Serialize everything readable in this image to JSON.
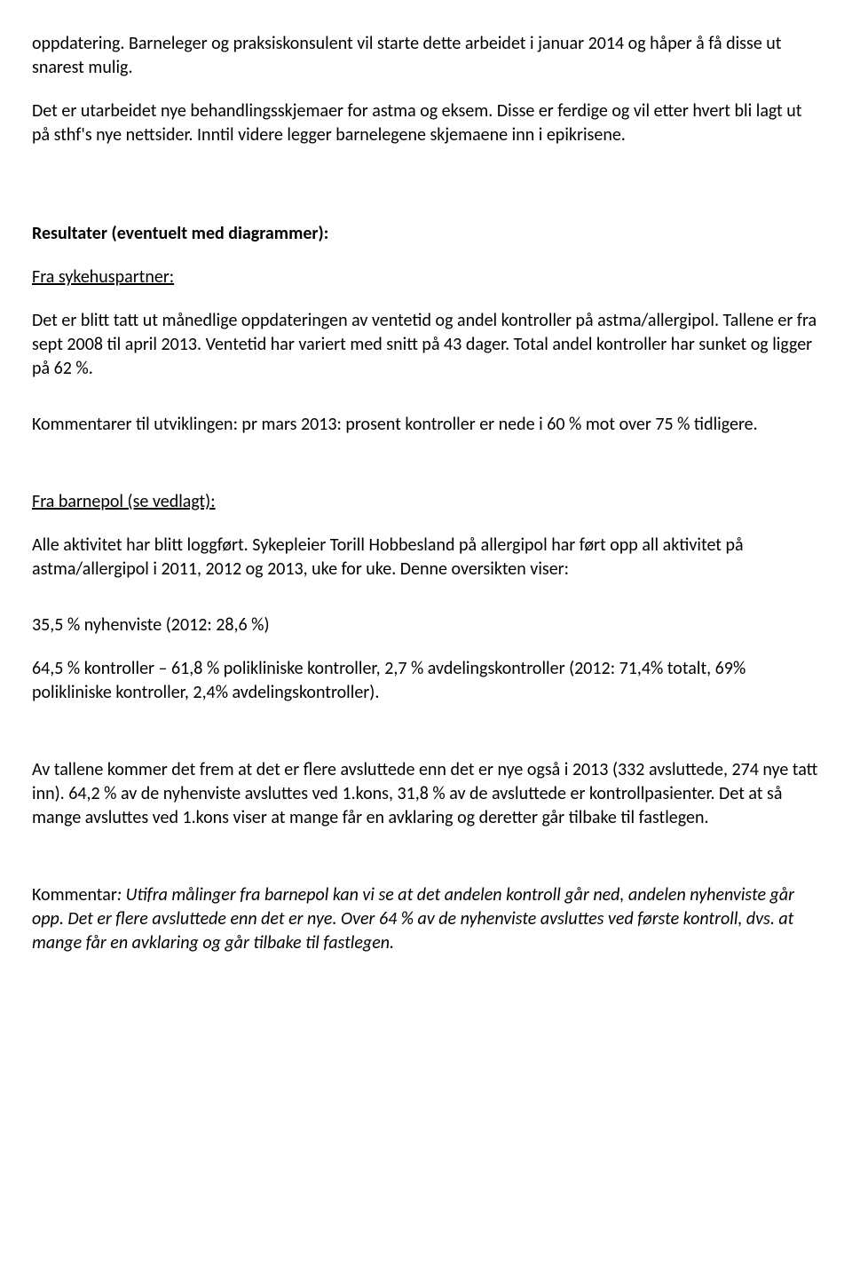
{
  "p1": "oppdatering. Barneleger og praksiskonsulent vil starte dette arbeidet i januar 2014 og håper å få disse ut snarest mulig.",
  "p2": "Det er utarbeidet nye behandlingsskjemaer for astma og eksem. Disse er ferdige og vil etter hvert bli lagt ut på sthf's nye nettsider. Inntil videre legger barnelegene skjemaene inn i epikrisene.",
  "h1": "Resultater (eventuelt med diagrammer):",
  "h2": "Fra sykehuspartner:",
  "p3": "Det er blitt tatt ut månedlige oppdateringen av ventetid og andel kontroller på astma/allergipol. Tallene er fra sept 2008 til april 2013. Ventetid har variert med snitt på 43 dager. Total andel kontroller har sunket og ligger på 62 %.",
  "p4": "Kommentarer til utviklingen: pr mars 2013: prosent kontroller er nede i 60 % mot over 75 % tidligere.",
  "h3": "Fra barnepol (se vedlagt):",
  "p5": "Alle aktivitet har blitt loggført. Sykepleier Torill Hobbesland på allergipol har ført opp all aktivitet på astma/allergipol i 2011, 2012 og 2013, uke for uke. Denne oversikten viser:",
  "p6": "35,5 % nyhenviste (2012: 28,6 %)",
  "p7": "64,5 % kontroller – 61,8 % polikliniske kontroller, 2,7 % avdelingskontroller (2012: 71,4% totalt, 69% polikliniske kontroller, 2,4% avdelingskontroller).",
  "p8": "Av tallene kommer det frem at det er flere avsluttede enn det er nye også i 2013 (332 avsluttede, 274 nye tatt inn). 64,2 % av de nyhenviste avsluttes ved 1.kons, 31,8 % av de avsluttede er kontrollpasienter. Det at så mange avsluttes ved 1.kons viser at mange får en avklaring og deretter går tilbake til fastlegen.",
  "p9_prefix": "Kommentar",
  "p9_italic": ": Utifra målinger fra barnepol kan vi se at det andelen kontroll går ned, andelen nyhenviste går opp. Det er flere avsluttede enn det er nye. Over 64 % av de nyhenviste avsluttes ved første kontroll, dvs. at mange får en avklaring og går tilbake til fastlegen."
}
